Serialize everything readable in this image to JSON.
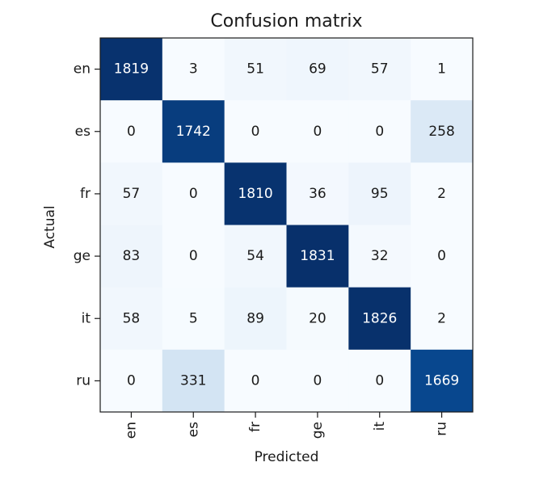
{
  "chart_data": {
    "type": "heatmap",
    "title": "Confusion matrix",
    "xlabel": "Predicted",
    "ylabel": "Actual",
    "x_categories": [
      "en",
      "es",
      "fr",
      "ge",
      "it",
      "ru"
    ],
    "y_categories": [
      "en",
      "es",
      "fr",
      "ge",
      "it",
      "ru"
    ],
    "values": [
      [
        1819,
        3,
        51,
        69,
        57,
        1
      ],
      [
        0,
        1742,
        0,
        0,
        0,
        258
      ],
      [
        57,
        0,
        1810,
        36,
        95,
        2
      ],
      [
        83,
        0,
        54,
        1831,
        32,
        0
      ],
      [
        58,
        5,
        89,
        20,
        1826,
        2
      ],
      [
        0,
        331,
        0,
        0,
        0,
        1669
      ]
    ],
    "colormap": "Blues",
    "colormap_low": "#f7fbff",
    "colormap_high": "#08306b",
    "text_dark": "#1a1a1a",
    "text_light": "#ffffff",
    "grid": false
  }
}
